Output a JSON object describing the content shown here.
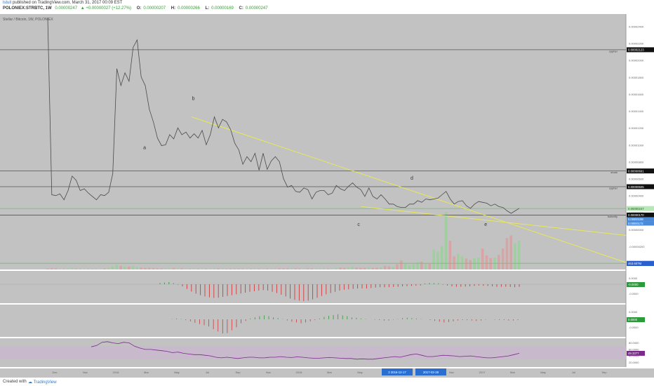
{
  "header": {
    "author": "lstuit",
    "published": "published on TradingView.com, March 31, 2017 00:09 EST",
    "symbol": "POLONIEX:STRBTC, 1W",
    "last": "0.00000247",
    "change": "+0.00000027 (+12.27%)",
    "o_label": "O:",
    "o_val": "0.00000207",
    "h_label": "H:",
    "h_val": "0.00000266",
    "l_label": "L:",
    "l_val": "0.00000169",
    "c_label": "C:",
    "c_val": "0.00000247"
  },
  "footer": {
    "created": "Created with",
    "brand": "TradingView"
  },
  "colors": {
    "pane_bg": "#c2c2c2",
    "price_line": "#4a4a4a",
    "trendline": "#e8e85a",
    "hline": "#555555",
    "green_line": "#6fc06f",
    "rsi_band": "#c9b6d0",
    "rsi_line": "#7a2a8a",
    "macd_up": "#2e9a3a",
    "macd_down": "#d33a3a"
  },
  "chart_data": {
    "type": "line",
    "title": "Stellar / Bitcoin, 1W, POLONIEX",
    "x_ticks": [
      "Dec",
      "Nov",
      "2016",
      "Mar",
      "May",
      "Jul",
      "Sep",
      "Nov",
      "2016",
      "Mar",
      "May",
      "Jul",
      "Sep",
      "Nov",
      "2017",
      "Mar",
      "May",
      "Jul",
      "Sep",
      "Nov"
    ],
    "date_flags": [
      "2 2016-12-17",
      "2017-02-28"
    ],
    "price_scale": [
      "0.00002400",
      "0.00002200",
      "0.00002000",
      "0.00001800",
      "0.00001600",
      "0.00001400",
      "0.00001200",
      "0.00001000",
      "0.00000800",
      "0.00000600",
      "0.00000400",
      "0.00000200",
      "0.00000000",
      "-0.00000200",
      "-0.00000400"
    ],
    "ylim": [
      -4.4e-06,
      2.52e-05
    ],
    "price_series": {
      "values": [
        2.5e-05,
        4.1e-06,
        4e-06,
        4.2e-06,
        3.5e-06,
        4.6e-06,
        6.3e-06,
        5.8e-06,
        4.6e-06,
        4.8e-06,
        4.3e-06,
        3.9e-06,
        3.5e-06,
        4.1e-06,
        4e-06,
        4.4e-06,
        6.6e-06,
        1.9e-05,
        1.7e-05,
        1.85e-05,
        1.75e-05,
        2.15e-05,
        2.24e-05,
        1.8e-05,
        1.7e-05,
        1.42e-05,
        1.27e-05,
        1.08e-05,
        9.9e-06,
        1e-05,
        1.12e-05,
        1.07e-05,
        1.2e-05,
        1.12e-05,
        1.15e-05,
        1.08e-05,
        1.13e-05,
        1.08e-05,
        1.17e-05,
        1e-05,
        1.12e-05,
        1.33e-05,
        1.2e-05,
        1.3e-05,
        1.27e-05,
        1.18e-05,
        1.02e-05,
        9.4e-06,
        7.7e-06,
        8.6e-06,
        8e-06,
        9e-06,
        7e-06,
        9e-06,
        7.1e-06,
        8.1e-06,
        8.6e-06,
        8e-06,
        6e-06,
        5e-06,
        5.2e-06,
        4.5e-06,
        4.4e-06,
        4.9e-06,
        4.7e-06,
        3.6e-06,
        4.4e-06,
        4.6e-06,
        4.6e-06,
        4.1e-06,
        4.3e-06,
        5.2e-06,
        4.8e-06,
        4.6e-06,
        5.1e-06,
        5.5e-06,
        5e-06,
        4.7e-06,
        3.9e-06,
        4.9e-06,
        3.9e-06,
        3.6e-06,
        4.1e-06,
        3.6e-06,
        3e-06,
        3e-06,
        2.7e-06,
        2.6e-06,
        2.6e-06,
        3e-06,
        3e-06,
        3.4e-06,
        3.2e-06,
        3.6e-06,
        3.5e-06,
        3.6e-06,
        3.7e-06,
        4.1e-06,
        4.5e-06,
        3.6e-06,
        3e-06,
        3.3e-06,
        3.4e-06,
        2.8e-06,
        2.5e-06,
        3e-06,
        3.3e-06,
        3.2e-06,
        3.1e-06,
        2.8e-06,
        3e-06,
        2.7e-06,
        2.6e-06,
        2.2e-06,
        1.9e-06,
        2.2e-06,
        2.5e-06
      ]
    },
    "trendlines": [
      {
        "from": [
          0.306,
          1.33e-05
        ],
        "to": [
          1.0,
          -3.9e-06
        ]
      },
      {
        "from": [
          0.577,
          2.7e-06
        ],
        "to": [
          1.0,
          -7e-07
        ]
      }
    ],
    "hlines": [
      {
        "value": 2.123e-05,
        "label": "cypher",
        "price_label": "0.00002123"
      },
      {
        "value": 6.91e-06,
        "label": "shark",
        "price_label": "0.00000691"
      },
      {
        "value": 5.05e-06,
        "label": "cypher",
        "price_label": "0.00000505"
      },
      {
        "value": 1.7e-06,
        "label": "butterfly",
        "price_label": "0.00000170"
      }
    ],
    "green_hlines": [
      {
        "value": 2.47e-06,
        "price_label": "0.00000247"
      },
      {
        "value": -4e-06,
        "price_label": "1.1848"
      }
    ],
    "blue_labels": [
      "0.00000198",
      "0.00000172"
    ],
    "volume_label": "463.607M",
    "points": [
      {
        "label": "a",
        "x": 0.231,
        "value": 9.5e-06
      },
      {
        "label": "b",
        "x": 0.309,
        "value": 1.53e-05
      },
      {
        "label": "c",
        "x": 0.573,
        "value": 4e-07
      },
      {
        "label": "d",
        "x": 0.658,
        "value": 5.9e-06
      },
      {
        "label": "e",
        "x": 0.776,
        "value": 4e-07
      }
    ],
    "volume": [
      0.3,
      0.5,
      0.4,
      0.3,
      0.2,
      0.4,
      0.5,
      0.3,
      0.2,
      0.3,
      0.2,
      0.2,
      0.2,
      0.3,
      0.4,
      0.6,
      1.2,
      1.8,
      1.4,
      1.0,
      1.1,
      1.3,
      0.9,
      0.7,
      0.6,
      0.6,
      0.5,
      0.4,
      0.4,
      0.4,
      0.4,
      0.5,
      0.4,
      0.4,
      0.4,
      0.3,
      0.4,
      0.3,
      0.4,
      0.3,
      0.3,
      0.4,
      0.4,
      0.3,
      0.3,
      0.3,
      0.3,
      0.3,
      0.3,
      0.3,
      0.3,
      0.3,
      0.3,
      0.3,
      0.3,
      0.3,
      0.3,
      0.4,
      0.4,
      0.4,
      0.4,
      0.4,
      0.3,
      0.3,
      0.4,
      0.4,
      0.3,
      0.3,
      0.4,
      0.3,
      0.3,
      0.5,
      0.7,
      0.6,
      0.8,
      1.0,
      0.7,
      0.6,
      0.6,
      0.7,
      0.6,
      0.6,
      0.8,
      1.4,
      1.2,
      1.0,
      2.0,
      3.4,
      2.2,
      1.6,
      2.0,
      2.8,
      3.0,
      2.2,
      2.2,
      7.6,
      6.8,
      9.0,
      22.0,
      11.0,
      5.0,
      6.0,
      5.0,
      4.2,
      3.6,
      4.4,
      4.6,
      8.0,
      5.4,
      4.4,
      4.6,
      5.6,
      8.0,
      12.0,
      13.0,
      10.0,
      11.0
    ],
    "macd_ticks": [
      "0.0000",
      "-0.0000"
    ],
    "macd_label": "-0.0000",
    "macd": [
      0.06,
      0.08,
      0.1,
      0.05,
      -0.02,
      -0.1,
      -0.22,
      -0.35,
      -0.45,
      -0.52,
      -0.58,
      -0.62,
      -0.65,
      -0.64,
      -0.6,
      -0.56,
      -0.52,
      -0.48,
      -0.44,
      -0.4,
      -0.36,
      -0.33,
      -0.3,
      -0.28,
      -0.3,
      -0.36,
      -0.42,
      -0.5,
      -0.58,
      -0.68,
      -0.74,
      -0.78,
      -0.8,
      -0.78,
      -0.72,
      -0.64,
      -0.56,
      -0.48,
      -0.42,
      -0.36,
      -0.3,
      -0.26,
      -0.24,
      -0.22,
      -0.2,
      -0.2,
      -0.2,
      -0.18,
      -0.16,
      -0.14,
      -0.14,
      -0.14,
      -0.13,
      -0.12,
      -0.1,
      -0.09,
      -0.08,
      -0.07,
      -0.06,
      0.04,
      0.06,
      0.05,
      0.04,
      -0.02,
      -0.06,
      -0.1,
      -0.12,
      -0.12,
      -0.11,
      -0.1,
      -0.08,
      -0.06,
      -0.07,
      -0.08,
      -0.1,
      -0.12,
      -0.12,
      -0.12,
      -0.13,
      -0.14,
      -0.12
    ],
    "stoch_ticks": [
      "0.0000",
      "-0.0000"
    ],
    "stoch_label": "0.0000",
    "stoch": [
      0.02,
      0.04,
      0.02,
      -0.04,
      -0.1,
      -0.18,
      -0.24,
      -0.3,
      -0.36,
      -0.5,
      -0.62,
      -0.72,
      -0.7,
      -0.56,
      -0.4,
      -0.2,
      -0.08,
      0.04,
      0.1,
      0.16,
      0.2,
      0.16,
      0.1,
      0.06,
      0.02,
      -0.06,
      -0.12,
      -0.16,
      -0.2,
      -0.16,
      -0.1,
      -0.04,
      0.04,
      0.12,
      0.18,
      0.22,
      0.26,
      0.2,
      0.16,
      0.1,
      0.08,
      0.04,
      0.02,
      0.0,
      -0.02,
      -0.04,
      -0.06,
      -0.06,
      -0.02,
      0.02,
      0.06,
      0.08,
      0.06,
      0.04,
      0.02,
      0.0,
      -0.04,
      -0.08,
      -0.12,
      -0.16,
      -0.14,
      -0.1,
      -0.06,
      -0.04,
      -0.04,
      -0.06,
      -0.08,
      -0.06,
      -0.02,
      0.0,
      -0.02,
      -0.04,
      -0.04,
      -0.06,
      -0.06,
      -0.04
    ],
    "rsi_ticks": [
      "80.0000",
      "60.0000",
      "40.0000",
      "20.0000"
    ],
    "rsi_label": "49.3377",
    "rsi": [
      68,
      72,
      82,
      84,
      80,
      78,
      82,
      80,
      70,
      64,
      60,
      60,
      58,
      56,
      54,
      50,
      52,
      48,
      46,
      44,
      44,
      42,
      40,
      36,
      34,
      36,
      34,
      32,
      34,
      36,
      36,
      34,
      34,
      36,
      36,
      38,
      36,
      35,
      37,
      36,
      34,
      33,
      33,
      34,
      35,
      34,
      33,
      32,
      32,
      30,
      31,
      30,
      30,
      32,
      34,
      36,
      38,
      36,
      40,
      44,
      46,
      42,
      38,
      38,
      40,
      42,
      41,
      40,
      38,
      39,
      40,
      38,
      36,
      34,
      34,
      36,
      38,
      40,
      44,
      48
    ]
  }
}
